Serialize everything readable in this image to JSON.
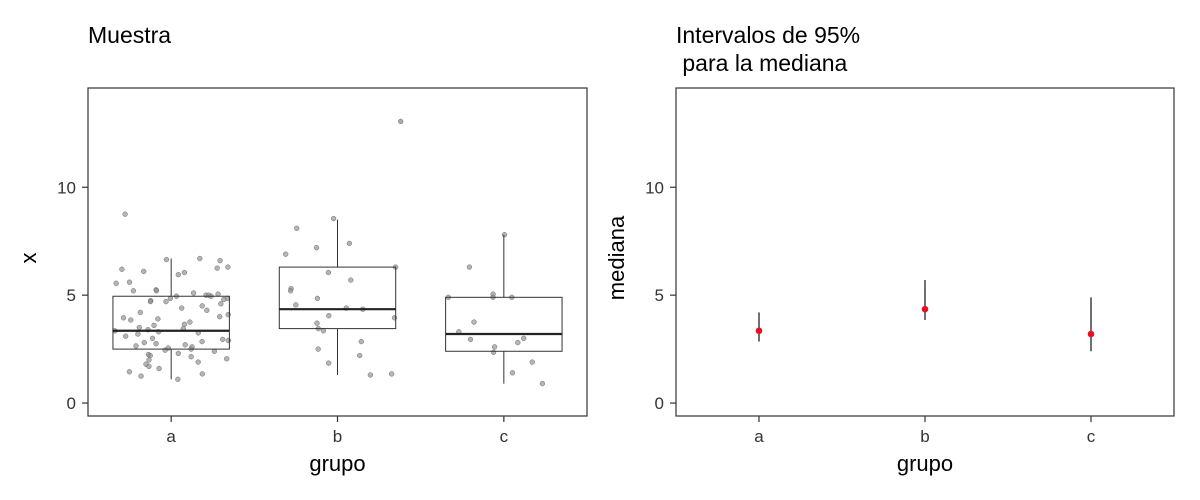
{
  "chart_data": [
    {
      "type": "box",
      "title": "Muestra",
      "xlabel": "grupo",
      "ylabel": "x",
      "categories": [
        "a",
        "b",
        "c"
      ],
      "y_ticks": [
        0,
        5,
        10
      ],
      "y_tick_labels": [
        "0",
        "5",
        "10"
      ],
      "ylim": [
        -0.6,
        14.6
      ],
      "grid": false,
      "box_stats": [
        {
          "group": "a",
          "whisker_low": 1.1,
          "q1": 2.5,
          "median": 3.35,
          "q3": 4.95,
          "whisker_high": 6.7
        },
        {
          "group": "b",
          "whisker_low": 1.3,
          "q1": 3.45,
          "median": 4.35,
          "q3": 6.3,
          "whisker_high": 8.5
        },
        {
          "group": "c",
          "whisker_low": 0.9,
          "q1": 2.4,
          "median": 3.2,
          "q3": 4.9,
          "whisker_high": 7.8
        }
      ],
      "outliers": [
        {
          "group": "b",
          "x_offset": 0.38,
          "y": 13.05
        }
      ],
      "points": [
        {
          "group": "a",
          "values": [
            8.75,
            6.7,
            6.65,
            6.6,
            6.3,
            6.2,
            6.25,
            6.1,
            6.05,
            5.95,
            5.6,
            5.55,
            5.25,
            5.2,
            5.2,
            5.1,
            5.05,
            5.0,
            5.0,
            4.95,
            4.95,
            4.85,
            4.85,
            4.8,
            4.75,
            4.7,
            4.7,
            4.6,
            4.5,
            4.4,
            4.3,
            4.2,
            4.1,
            4.0,
            3.95,
            3.9,
            3.85,
            3.75,
            3.65,
            3.6,
            3.5,
            3.45,
            3.4,
            3.35,
            3.3,
            3.25,
            3.2,
            3.1,
            3.0,
            2.95,
            2.9,
            2.85,
            2.8,
            2.75,
            2.7,
            2.65,
            2.6,
            2.55,
            2.5,
            2.45,
            2.4,
            2.3,
            2.25,
            2.2,
            2.15,
            2.05,
            2.0,
            1.9,
            1.8,
            1.7,
            1.6,
            1.45,
            1.35,
            1.25,
            1.1
          ]
        },
        {
          "group": "b",
          "values": [
            8.55,
            8.1,
            7.4,
            7.2,
            6.9,
            6.3,
            6.05,
            5.7,
            5.3,
            5.2,
            4.85,
            4.55,
            4.4,
            4.35,
            4.05,
            3.95,
            3.7,
            3.45,
            3.35,
            2.85,
            2.5,
            2.2,
            1.85,
            1.35,
            1.3
          ]
        },
        {
          "group": "c",
          "values": [
            7.8,
            6.3,
            5.05,
            4.9,
            4.9,
            4.9,
            3.75,
            3.3,
            3.0,
            2.95,
            2.8,
            2.6,
            2.35,
            1.9,
            1.4,
            0.9
          ]
        }
      ]
    },
    {
      "type": "errorbar",
      "title": "Intervalos de 95%\n para la mediana",
      "xlabel": "grupo",
      "ylabel": "mediana",
      "categories": [
        "a",
        "b",
        "c"
      ],
      "y_ticks": [
        0,
        5,
        10
      ],
      "y_tick_labels": [
        "0",
        "5",
        "10"
      ],
      "ylim": [
        -0.6,
        14.6
      ],
      "grid": false,
      "series": [
        {
          "values": [
            3.35,
            4.35,
            3.2
          ],
          "lower": [
            2.85,
            3.85,
            2.4
          ],
          "upper": [
            4.2,
            5.7,
            4.9
          ]
        }
      ],
      "point_color": "#e8101e"
    }
  ]
}
